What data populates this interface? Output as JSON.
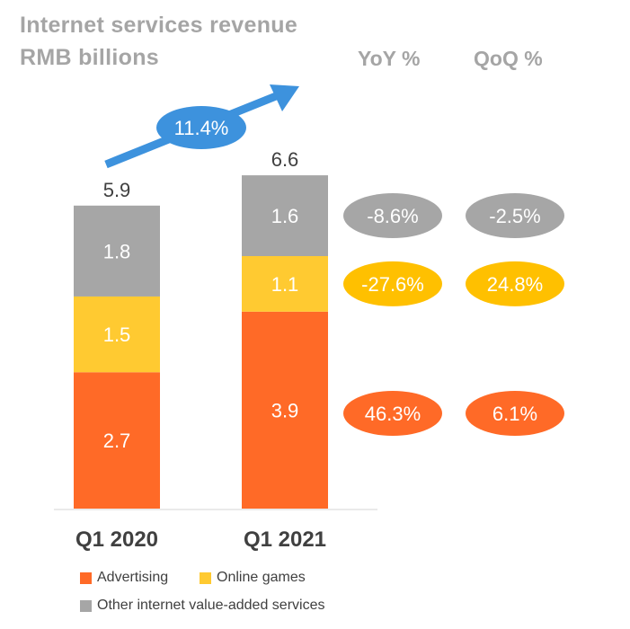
{
  "header": {
    "title": "Internet services revenue",
    "subtitle": "RMB billions",
    "yoy_header": "YoY %",
    "qoq_header": "QoQ %"
  },
  "colors": {
    "advertising": "#ff6a27",
    "online_games": "#ffca31",
    "other": "#a6a6a6",
    "growth_arrow": "#3d92dd",
    "yoy_gray": "#a6a6a6",
    "yoy_yellow": "#ffc000",
    "yoy_orange": "#ff6a27"
  },
  "chart_data": {
    "type": "bar",
    "stacked": true,
    "title": "Internet services revenue",
    "subtitle": "RMB billions",
    "xlabel": "",
    "ylabel": "RMB billions",
    "categories": [
      "Q1 2020",
      "Q1 2021"
    ],
    "series": [
      {
        "name": "Advertising",
        "values": [
          2.7,
          3.9
        ],
        "color": "#ff6a27"
      },
      {
        "name": "Online games",
        "values": [
          1.5,
          1.1
        ],
        "color": "#ffca31"
      },
      {
        "name": "Other internet value-added services",
        "values": [
          1.8,
          1.6
        ],
        "color": "#a6a6a6"
      }
    ],
    "totals": [
      5.9,
      6.6
    ],
    "total_labels": [
      "5.9",
      "6.6"
    ],
    "segment_labels": [
      [
        "2.7",
        "1.5",
        "1.8"
      ],
      [
        "3.9",
        "1.1",
        "1.6"
      ]
    ],
    "growth_annotation": "11.4%",
    "yoy": {
      "Advertising": "46.3%",
      "Online games": "-27.6%",
      "Other internet value-added services": "-8.6%"
    },
    "qoq": {
      "Advertising": "6.1%",
      "Online games": "24.8%",
      "Other internet value-added services": "-2.5%"
    },
    "legend": [
      "Advertising",
      "Online games",
      "Other internet value-added services"
    ],
    "legend_position": "bottom",
    "grid": false,
    "ylim": [
      0,
      6.6
    ]
  }
}
